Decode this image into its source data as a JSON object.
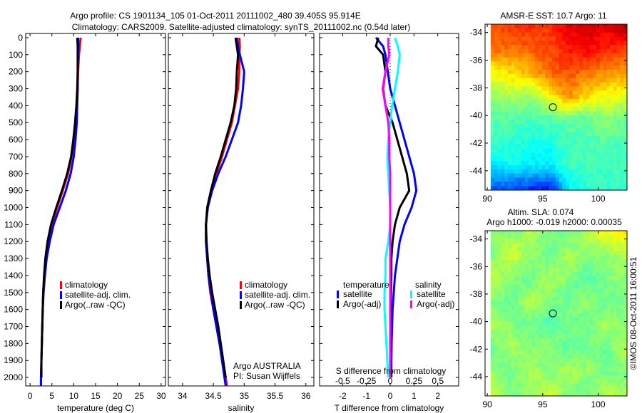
{
  "title_line1": "Argo profile: CS 1901134_105 01-Oct-2011 20111002_480 39.405S 95.914E",
  "title_line2": "Climatology: CARS2009. Satellite-adjusted climatology: synTS_20111002.nc (0.54d later)",
  "footer_credit": "©IMOS 08-Oct-2011 16:00:51",
  "colors": {
    "climatology": "#ff0000",
    "satellite": "#0000ff",
    "argo": "#000000",
    "salinity_satellite": "#00ffff",
    "salinity_argo": "#ff00ff"
  },
  "chart_data": [
    {
      "type": "line",
      "name": "temperature",
      "xlabel": "temperature (deg C)",
      "xlim": [
        -1,
        31
      ],
      "ylim": [
        -25,
        2050
      ],
      "xticks": [
        0,
        5,
        10,
        15,
        20,
        25,
        30
      ],
      "yticks": [
        0,
        100,
        200,
        300,
        400,
        500,
        600,
        700,
        800,
        900,
        1000,
        1100,
        1200,
        1300,
        1400,
        1500,
        1600,
        1700,
        1800,
        1900,
        2000
      ],
      "legend": [
        "climatology",
        "satellite-adj. clim.",
        "Argo(..raw -QC)"
      ],
      "depth": [
        0,
        50,
        100,
        200,
        300,
        400,
        500,
        600,
        700,
        800,
        900,
        1000,
        1100,
        1200,
        1300,
        1400,
        1500,
        1600,
        1700,
        1800,
        1900,
        2000,
        2050
      ],
      "series": [
        {
          "name": "climatology",
          "color": "#ff0000",
          "values": [
            11.6,
            11.4,
            11.2,
            11,
            10.9,
            10.7,
            10.5,
            10,
            9.5,
            8.7,
            7.5,
            6.2,
            5,
            4.2,
            3.6,
            3.3,
            3.0,
            2.9,
            2.8,
            2.7,
            2.6,
            2.5,
            2.5
          ]
        },
        {
          "name": "satellite-adj. clim.",
          "color": "#0000ff",
          "values": [
            11.0,
            11.1,
            11.0,
            10.9,
            10.9,
            10.8,
            10.7,
            10.4,
            10,
            9.3,
            8.2,
            6.8,
            5.4,
            4.5,
            3.8,
            3.4,
            3.1,
            2.9,
            2.8,
            2.7,
            2.6,
            2.5,
            2.5
          ]
        },
        {
          "name": "Argo(..raw -QC)",
          "color": "#000000",
          "values": [
            10.8,
            10.9,
            10.9,
            10.9,
            10.8,
            10.6,
            10.3,
            9.9,
            9.4,
            8.5,
            7.3,
            6.0,
            4.8,
            4.0,
            3.5,
            3.2,
            3.0,
            2.9,
            2.8,
            2.7,
            2.6,
            2.6
          ]
        }
      ]
    },
    {
      "type": "line",
      "name": "salinity",
      "xlabel": "salinity",
      "xlim": [
        33.77,
        36.13
      ],
      "ylim": [
        -25,
        2050
      ],
      "xticks": [
        34,
        34.5,
        35,
        35.5,
        36
      ],
      "legend": [
        "climatology",
        "satellite-adj. clim.",
        "Argo(..raw -QC)"
      ],
      "annotation": [
        "Argo AUSTRALIA",
        "PI: Susan Wijffels"
      ],
      "depth": [
        0,
        50,
        100,
        200,
        300,
        400,
        500,
        600,
        700,
        800,
        900,
        1000,
        1100,
        1200,
        1300,
        1400,
        1500,
        1600,
        1700,
        1800,
        1900,
        2000,
        2050
      ],
      "series": [
        {
          "name": "climatology",
          "color": "#ff0000",
          "values": [
            34.92,
            34.93,
            34.92,
            34.92,
            34.9,
            34.85,
            34.8,
            34.72,
            34.64,
            34.55,
            34.47,
            34.41,
            34.38,
            34.38,
            34.4,
            34.42,
            34.45,
            34.5,
            34.55,
            34.6,
            34.65,
            34.7,
            34.72
          ]
        },
        {
          "name": "satellite-adj. clim.",
          "color": "#0000ff",
          "values": [
            34.88,
            34.9,
            34.93,
            35.0,
            34.98,
            34.95,
            34.9,
            34.8,
            34.7,
            34.58,
            34.48,
            34.41,
            34.38,
            34.38,
            34.4,
            34.42,
            34.46,
            34.5,
            34.55,
            34.6,
            34.64,
            34.68,
            34.7
          ]
        },
        {
          "name": "Argo(..raw -QC)",
          "color": "#000000",
          "values": [
            34.86,
            34.88,
            34.9,
            34.88,
            34.87,
            34.84,
            34.78,
            34.7,
            34.62,
            34.53,
            34.46,
            34.4,
            34.38,
            34.39,
            34.41,
            34.44,
            34.48,
            34.53,
            34.58,
            34.62,
            34.66,
            34.7
          ]
        }
      ]
    },
    {
      "type": "line",
      "name": "difference",
      "xlabel": "T difference from climatology",
      "s_axis_label": "S difference from climatology",
      "xlim": [
        -2.97,
        2.88
      ],
      "ylim": [
        -25,
        2050
      ],
      "xticks": [
        -2,
        -1,
        0,
        1,
        2
      ],
      "s_ticks": [
        -0.5,
        -0.25,
        0,
        0.25,
        0.5
      ],
      "s_tick_labels": [
        "-0.5",
        "-0.25",
        "0",
        "0.25",
        "0.5"
      ],
      "s_scale": 4,
      "legend_headers": [
        "temperature",
        "salinity"
      ],
      "legend": [
        "satellite",
        "Argo(-adj)",
        "satellite",
        "Argo(-adj)"
      ],
      "depth": [
        0,
        50,
        100,
        200,
        300,
        400,
        500,
        600,
        700,
        800,
        900,
        1000,
        1100,
        1200,
        1300,
        1400,
        1500,
        1600,
        1700,
        1800,
        1900,
        2000
      ],
      "series": [
        {
          "name": "T satellite",
          "color": "#0000ff",
          "kind": "T",
          "values": [
            -0.6,
            -0.3,
            -0.2,
            -0.1,
            0,
            0.2,
            0.4,
            0.6,
            0.8,
            1.0,
            1.1,
            0.9,
            0.6,
            0.4,
            0.3,
            0.2,
            0.15,
            0.1,
            0.08,
            0.06,
            0.05,
            0.05
          ]
        },
        {
          "name": "T Argo(-adj)",
          "color": "#000000",
          "kind": "T",
          "values": [
            -0.5,
            -0.6,
            -0.3,
            -0.2,
            -0.3,
            -0.2,
            0.1,
            0.3,
            0.5,
            0.7,
            0.8,
            0.4,
            0.2,
            0.1,
            0.05,
            0.05,
            0.03,
            0.02,
            0,
            0,
            0,
            0.05
          ]
        },
        {
          "name": "S satellite",
          "color": "#00ffff",
          "kind": "S",
          "values": [
            0.05,
            0.08,
            0.1,
            0.08,
            0.05,
            0.02,
            0.0,
            -0.02,
            -0.03,
            -0.02,
            -0.01,
            0,
            0,
            -0.02,
            -0.05,
            -0.05,
            -0.06,
            -0.06,
            -0.05,
            -0.04,
            -0.03,
            -0.02
          ]
        },
        {
          "name": "S Argo(-adj)",
          "color": "#ff00ff",
          "kind": "S",
          "values": [
            -0.02,
            -0.02,
            -0.01,
            -0.05,
            -0.08,
            -0.05,
            -0.02,
            -0.01,
            -0.01,
            0,
            0,
            0,
            0,
            0,
            0,
            0,
            0,
            0,
            0,
            0,
            0,
            0
          ]
        }
      ]
    },
    {
      "type": "heatmap",
      "name": "sst-map",
      "title": "AMSR-E SST: 10.7 Argo: 11",
      "xlim": [
        89.8,
        102.6
      ],
      "ylim": [
        -45.4,
        -33.4
      ],
      "xticks": [
        90,
        95,
        100
      ],
      "yticks": [
        -34,
        -36,
        -38,
        -40,
        -42,
        -44
      ],
      "marker": {
        "lon": 95.914,
        "lat": -39.405
      },
      "coarse_grid_colormap_fraction": [
        [
          0.8,
          0.82,
          0.84,
          0.83,
          0.9,
          0.92,
          0.9,
          0.95
        ],
        [
          0.78,
          0.76,
          0.78,
          0.8,
          0.85,
          0.88,
          0.84,
          0.82
        ],
        [
          0.62,
          0.66,
          0.7,
          0.78,
          0.8,
          0.76,
          0.74,
          0.72
        ],
        [
          0.52,
          0.55,
          0.52,
          0.62,
          0.74,
          0.66,
          0.62,
          0.6
        ],
        [
          0.46,
          0.46,
          0.45,
          0.46,
          0.48,
          0.47,
          0.52,
          0.47
        ],
        [
          0.44,
          0.42,
          0.4,
          0.4,
          0.44,
          0.45,
          0.46,
          0.45
        ],
        [
          0.36,
          0.38,
          0.37,
          0.36,
          0.44,
          0.44,
          0.44,
          0.44
        ],
        [
          0.22,
          0.2,
          0.18,
          0.16,
          0.36,
          0.42,
          0.42,
          0.43
        ]
      ]
    },
    {
      "type": "heatmap",
      "name": "sla-map",
      "title_line1": "Altim. SLA: 0.074",
      "title_line2": "Argo h1000: -0.019 h2000: 0.00035",
      "xlim": [
        89.8,
        102.6
      ],
      "ylim": [
        -45.4,
        -33.4
      ],
      "xticks": [
        90,
        95,
        100
      ],
      "yticks": [
        -34,
        -36,
        -38,
        -40,
        -42,
        -44
      ],
      "marker": {
        "lon": 95.914,
        "lat": -39.405
      },
      "coarse_grid_colormap_fraction": [
        [
          0.52,
          0.5,
          0.55,
          0.5,
          0.48,
          0.56,
          0.62,
          0.64
        ],
        [
          0.5,
          0.58,
          0.52,
          0.48,
          0.55,
          0.5,
          0.52,
          0.55
        ],
        [
          0.56,
          0.5,
          0.48,
          0.55,
          0.5,
          0.46,
          0.5,
          0.52
        ],
        [
          0.5,
          0.47,
          0.56,
          0.5,
          0.48,
          0.52,
          0.47,
          0.5
        ],
        [
          0.55,
          0.5,
          0.48,
          0.45,
          0.5,
          0.48,
          0.55,
          0.5
        ],
        [
          0.48,
          0.55,
          0.5,
          0.52,
          0.46,
          0.5,
          0.48,
          0.56
        ],
        [
          0.52,
          0.48,
          0.54,
          0.5,
          0.55,
          0.52,
          0.48,
          0.5
        ],
        [
          0.56,
          0.5,
          0.52,
          0.58,
          0.5,
          0.48,
          0.56,
          0.54
        ]
      ]
    }
  ]
}
